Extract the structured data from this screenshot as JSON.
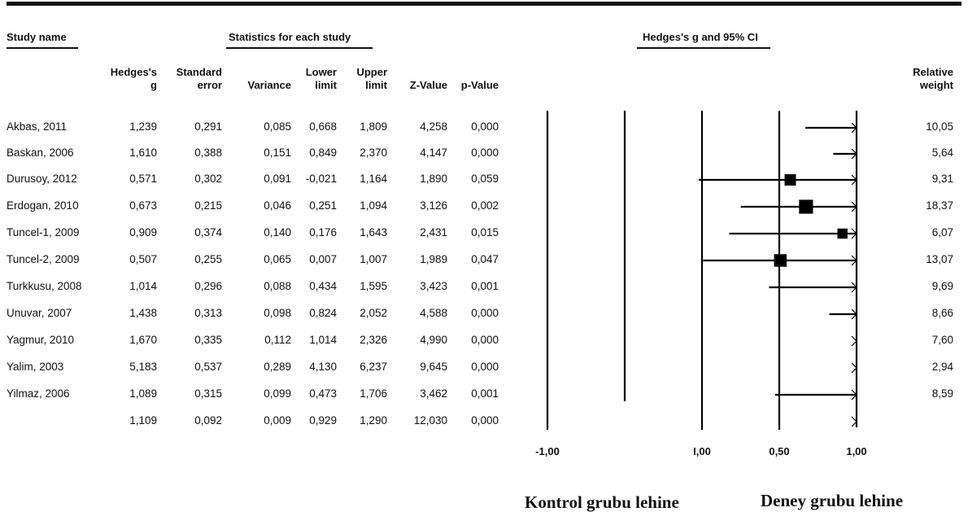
{
  "section_headers": {
    "study_name": "Study name",
    "statistics": "Statistics for each study",
    "plot": "Hedges's g and 95% CI"
  },
  "columns": [
    {
      "key": "g",
      "label": [
        "Hedges's",
        "g"
      ]
    },
    {
      "key": "se",
      "label": [
        "Standard",
        "error"
      ]
    },
    {
      "key": "var",
      "label": [
        "Variance"
      ]
    },
    {
      "key": "lower",
      "label": [
        "Lower",
        "limit"
      ]
    },
    {
      "key": "upper",
      "label": [
        "Upper",
        "limit"
      ]
    },
    {
      "key": "z",
      "label": [
        "Z-Value"
      ]
    },
    {
      "key": "p",
      "label": [
        "p-Value"
      ]
    }
  ],
  "relative_weight_label": [
    "Relative",
    "weight"
  ],
  "rows": [
    {
      "name": "Akbas, 2011",
      "g": "1,239",
      "se": "0,291",
      "var": "0,085",
      "lower": "0,668",
      "upper": "1,809",
      "z": "4,258",
      "p": "0,000",
      "weight": "10,05"
    },
    {
      "name": "Baskan, 2006",
      "g": "1,610",
      "se": "0,388",
      "var": "0,151",
      "lower": "0,849",
      "upper": "2,370",
      "z": "4,147",
      "p": "0,000",
      "weight": "5,64"
    },
    {
      "name": "Durusoy, 2012",
      "g": "0,571",
      "se": "0,302",
      "var": "0,091",
      "lower": "-0,021",
      "upper": "1,164",
      "z": "1,890",
      "p": "0,059",
      "weight": "9,31"
    },
    {
      "name": "Erdogan, 2010",
      "g": "0,673",
      "se": "0,215",
      "var": "0,046",
      "lower": "0,251",
      "upper": "1,094",
      "z": "3,126",
      "p": "0,002",
      "weight": "18,37"
    },
    {
      "name": "Tuncel-1, 2009",
      "g": "0,909",
      "se": "0,374",
      "var": "0,140",
      "lower": "0,176",
      "upper": "1,643",
      "z": "2,431",
      "p": "0,015",
      "weight": "6,07"
    },
    {
      "name": "Tuncel-2, 2009",
      "g": "0,507",
      "se": "0,255",
      "var": "0,065",
      "lower": "0,007",
      "upper": "1,007",
      "z": "1,989",
      "p": "0,047",
      "weight": "13,07"
    },
    {
      "name": "Turkkusu, 2008",
      "g": "1,014",
      "se": "0,296",
      "var": "0,088",
      "lower": "0,434",
      "upper": "1,595",
      "z": "3,423",
      "p": "0,001",
      "weight": "9,69"
    },
    {
      "name": "Unuvar, 2007",
      "g": "1,438",
      "se": "0,313",
      "var": "0,098",
      "lower": "0,824",
      "upper": "2,052",
      "z": "4,588",
      "p": "0,000",
      "weight": "8,66"
    },
    {
      "name": "Yagmur, 2010",
      "g": "1,670",
      "se": "0,335",
      "var": "0,112",
      "lower": "1,014",
      "upper": "2,326",
      "z": "4,990",
      "p": "0,000",
      "weight": "7,60"
    },
    {
      "name": "Yalim, 2003",
      "g": "5,183",
      "se": "0,537",
      "var": "0,289",
      "lower": "4,130",
      "upper": "6,237",
      "z": "9,645",
      "p": "0,000",
      "weight": "2,94"
    },
    {
      "name": "Yilmaz, 2006",
      "g": "1,089",
      "se": "0,315",
      "var": "0,099",
      "lower": "0,473",
      "upper": "1,706",
      "z": "3,462",
      "p": "0,001",
      "weight": "8,59"
    }
  ],
  "summary": {
    "name": "",
    "g": "1,109",
    "se": "0,092",
    "var": "0,009",
    "lower": "0,929",
    "upper": "1,290",
    "z": "12,030",
    "p": "0,000",
    "weight": ""
  },
  "footer": {
    "left": "Kontrol grubu lehine",
    "right": "Deney grubu lehine"
  },
  "chart_data": {
    "type": "forest",
    "title": "Hedges's g and 95% CI",
    "xlim": [
      -1,
      1
    ],
    "x_tick_values": [
      -1,
      0,
      0.5,
      1
    ],
    "x_tick_labels": [
      "-1,00",
      "I,00",
      "0,50",
      "1,00"
    ],
    "study_effects": [
      {
        "study": "Akbas, 2011",
        "g": 1.239,
        "lower": 0.668,
        "upper": 1.809,
        "weight": 10.05
      },
      {
        "study": "Baskan, 2006",
        "g": 1.61,
        "lower": 0.849,
        "upper": 2.37,
        "weight": 5.64
      },
      {
        "study": "Durusoy, 2012",
        "g": 0.571,
        "lower": -0.021,
        "upper": 1.164,
        "weight": 9.31
      },
      {
        "study": "Erdogan, 2010",
        "g": 0.673,
        "lower": 0.251,
        "upper": 1.094,
        "weight": 18.37
      },
      {
        "study": "Tuncel-1, 2009",
        "g": 0.909,
        "lower": 0.176,
        "upper": 1.643,
        "weight": 6.07
      },
      {
        "study": "Tuncel-2, 2009",
        "g": 0.507,
        "lower": 0.007,
        "upper": 1.007,
        "weight": 13.07
      },
      {
        "study": "Turkkusu, 2008",
        "g": 1.014,
        "lower": 0.434,
        "upper": 1.595,
        "weight": 9.69
      },
      {
        "study": "Unuvar, 2007",
        "g": 1.438,
        "lower": 0.824,
        "upper": 2.052,
        "weight": 8.66
      },
      {
        "study": "Yagmur, 2010",
        "g": 1.67,
        "lower": 1.014,
        "upper": 2.326,
        "weight": 7.6
      },
      {
        "study": "Yalim, 2003",
        "g": 5.183,
        "lower": 4.13,
        "upper": 6.237,
        "weight": 2.94
      },
      {
        "study": "Yilmaz, 2006",
        "g": 1.089,
        "lower": 0.473,
        "upper": 1.706,
        "weight": 8.59
      }
    ],
    "summary_effect": {
      "g": 1.109,
      "lower": 0.929,
      "upper": 1.29
    },
    "reference_lines": [
      -1,
      -0.5,
      0,
      0.5,
      1
    ],
    "marker_color": "#000000",
    "line_color": "#000000"
  }
}
